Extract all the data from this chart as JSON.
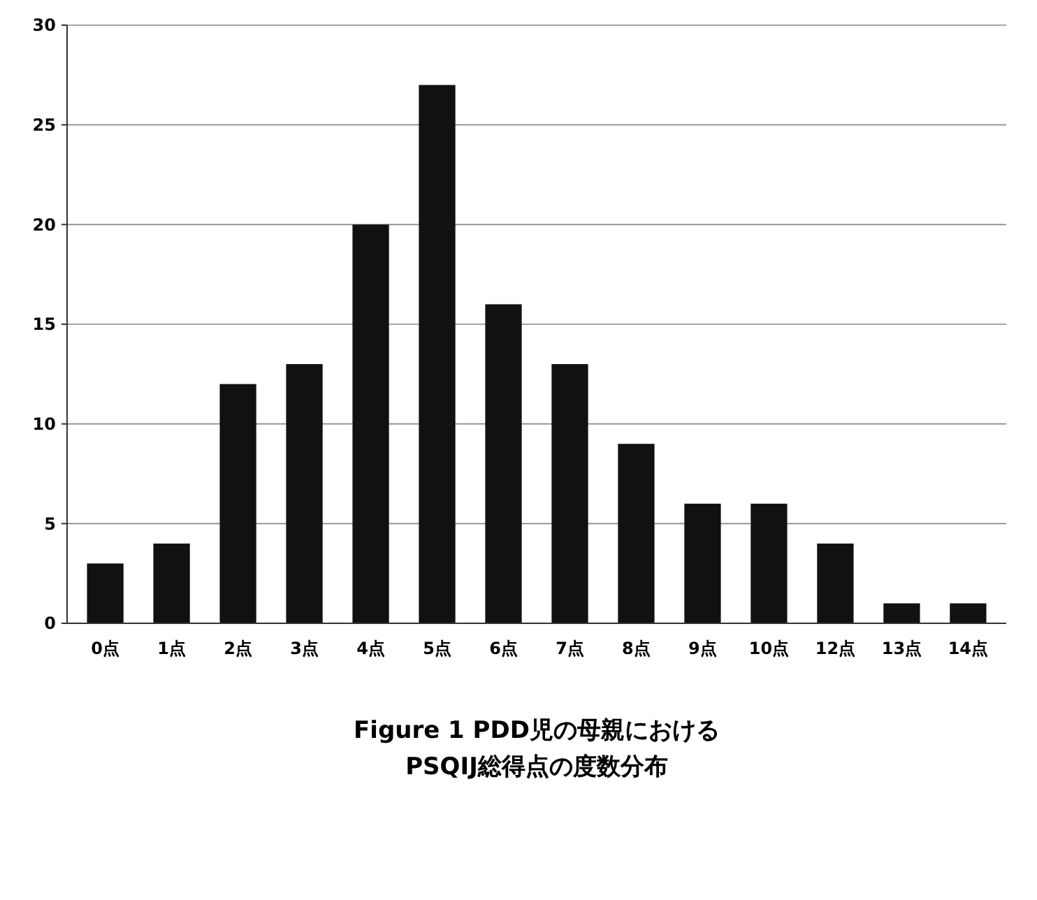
{
  "chart_data": {
    "type": "bar",
    "title": "Figure 1 PDD児の母親における\nPSQIJ総得点の度数分布",
    "categories": [
      "0点",
      "1点",
      "2点",
      "3点",
      "4点",
      "5点",
      "6点",
      "7点",
      "8点",
      "9点",
      "10点",
      "12点",
      "13点",
      "14点"
    ],
    "series": [
      {
        "color": "#111111",
        "values": [
          3,
          4,
          12,
          13,
          20,
          27,
          16,
          13,
          9,
          6,
          6,
          4,
          1,
          1
        ]
      }
    ],
    "ylim": [
      0,
      30
    ],
    "yticks": [
      0,
      5,
      10,
      15,
      20,
      25,
      30
    ],
    "grid": "y"
  }
}
